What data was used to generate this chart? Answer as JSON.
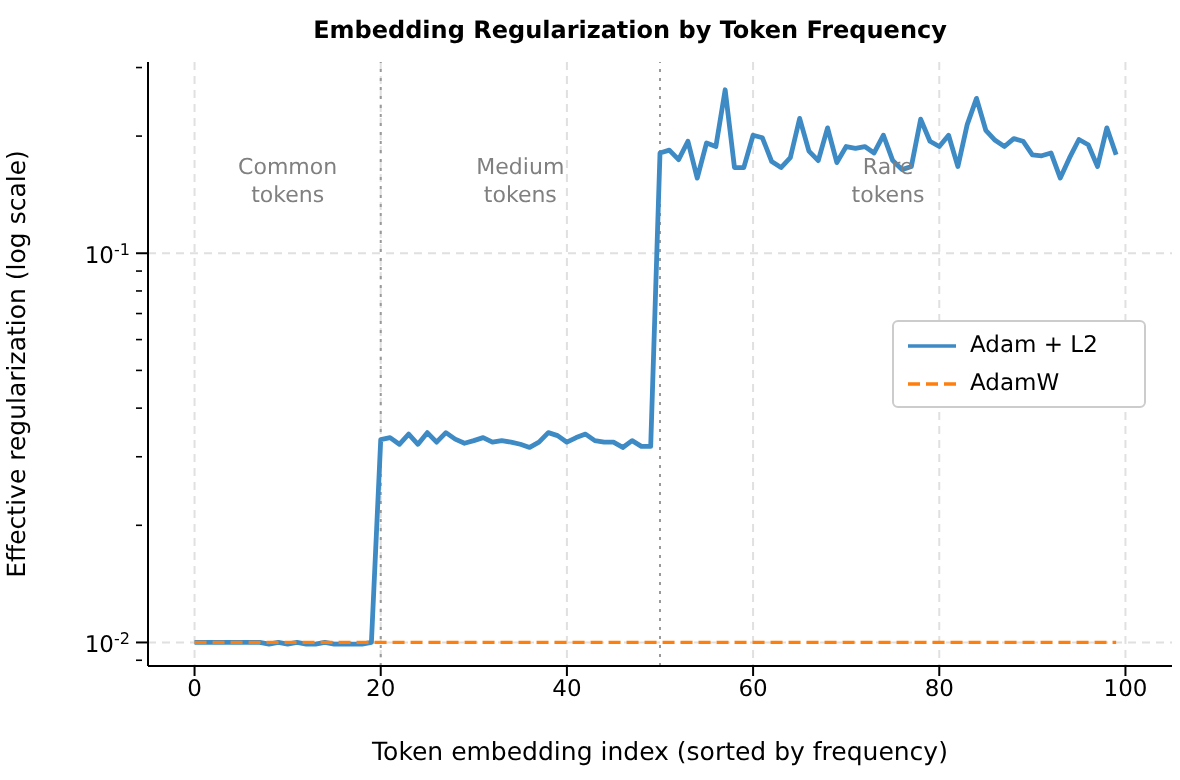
{
  "chart_data": {
    "type": "line",
    "title": "Embedding Regularization by Token Frequency",
    "xlabel": "Token embedding index (sorted by frequency)",
    "ylabel": "Effective regularization (log scale)",
    "x": [
      0,
      1,
      2,
      3,
      4,
      5,
      6,
      7,
      8,
      9,
      10,
      11,
      12,
      13,
      14,
      15,
      16,
      17,
      18,
      19,
      20,
      21,
      22,
      23,
      24,
      25,
      26,
      27,
      28,
      29,
      30,
      31,
      32,
      33,
      34,
      35,
      36,
      37,
      38,
      39,
      40,
      41,
      42,
      43,
      44,
      45,
      46,
      47,
      48,
      49,
      50,
      51,
      52,
      53,
      54,
      55,
      56,
      57,
      58,
      59,
      60,
      61,
      62,
      63,
      64,
      65,
      66,
      67,
      68,
      69,
      70,
      71,
      72,
      73,
      74,
      75,
      76,
      77,
      78,
      79,
      80,
      81,
      82,
      83,
      84,
      85,
      86,
      87,
      88,
      89,
      90,
      91,
      92,
      93,
      94,
      95,
      96,
      97,
      98,
      99
    ],
    "series": [
      {
        "name": "Adam + L2",
        "color": "#3d8ac4",
        "line_style": "solid",
        "values": [
          0.01,
          0.01,
          0.01,
          0.01,
          0.01,
          0.01,
          0.01,
          0.01,
          0.0099,
          0.01,
          0.0099,
          0.01,
          0.0099,
          0.0099,
          0.01,
          0.0099,
          0.0099,
          0.0099,
          0.0099,
          0.01,
          0.0332,
          0.0336,
          0.0323,
          0.0343,
          0.0323,
          0.0346,
          0.0327,
          0.0346,
          0.0333,
          0.0325,
          0.033,
          0.0336,
          0.0327,
          0.033,
          0.0327,
          0.0323,
          0.0317,
          0.0327,
          0.0346,
          0.034,
          0.0327,
          0.0336,
          0.0343,
          0.033,
          0.0327,
          0.0327,
          0.0317,
          0.033,
          0.0319,
          0.0319,
          0.181,
          0.184,
          0.174,
          0.194,
          0.156,
          0.192,
          0.188,
          0.263,
          0.166,
          0.166,
          0.201,
          0.198,
          0.172,
          0.166,
          0.176,
          0.222,
          0.183,
          0.173,
          0.21,
          0.171,
          0.188,
          0.186,
          0.188,
          0.181,
          0.201,
          0.173,
          0.164,
          0.167,
          0.221,
          0.194,
          0.188,
          0.201,
          0.167,
          0.214,
          0.25,
          0.207,
          0.195,
          0.188,
          0.197,
          0.194,
          0.179,
          0.178,
          0.181,
          0.156,
          0.176,
          0.196,
          0.19,
          0.167,
          0.21,
          0.179
        ]
      },
      {
        "name": "AdamW",
        "color": "#ff7f0e",
        "line_style": "dashed",
        "values": [
          0.01,
          0.01,
          0.01,
          0.01,
          0.01,
          0.01,
          0.01,
          0.01,
          0.01,
          0.01,
          0.01,
          0.01,
          0.01,
          0.01,
          0.01,
          0.01,
          0.01,
          0.01,
          0.01,
          0.01,
          0.01,
          0.01,
          0.01,
          0.01,
          0.01,
          0.01,
          0.01,
          0.01,
          0.01,
          0.01,
          0.01,
          0.01,
          0.01,
          0.01,
          0.01,
          0.01,
          0.01,
          0.01,
          0.01,
          0.01,
          0.01,
          0.01,
          0.01,
          0.01,
          0.01,
          0.01,
          0.01,
          0.01,
          0.01,
          0.01,
          0.01,
          0.01,
          0.01,
          0.01,
          0.01,
          0.01,
          0.01,
          0.01,
          0.01,
          0.01,
          0.01,
          0.01,
          0.01,
          0.01,
          0.01,
          0.01,
          0.01,
          0.01,
          0.01,
          0.01,
          0.01,
          0.01,
          0.01,
          0.01,
          0.01,
          0.01,
          0.01,
          0.01,
          0.01,
          0.01,
          0.01,
          0.01,
          0.01,
          0.01,
          0.01,
          0.01,
          0.01,
          0.01,
          0.01,
          0.01,
          0.01,
          0.01,
          0.01,
          0.01,
          0.01,
          0.01,
          0.01,
          0.01,
          0.01,
          0.01
        ]
      }
    ],
    "log": "y",
    "xlim": [
      -5,
      105
    ],
    "xticks": [
      0,
      20,
      40,
      60,
      80,
      100
    ],
    "ylim": [
      0.0087,
      0.31
    ],
    "yticks": [
      {
        "value": 0.009,
        "label": null
      },
      {
        "value": 0.01,
        "label": "10$^{-2}$"
      },
      {
        "value": 0.02,
        "label": null
      },
      {
        "value": 0.03,
        "label": null
      },
      {
        "value": 0.04,
        "label": null
      },
      {
        "value": 0.05,
        "label": null
      },
      {
        "value": 0.06,
        "label": null
      },
      {
        "value": 0.07,
        "label": null
      },
      {
        "value": 0.08,
        "label": null
      },
      {
        "value": 0.09,
        "label": null
      },
      {
        "value": 0.1,
        "label": "10$^{-1}$"
      },
      {
        "value": 0.2,
        "label": null
      },
      {
        "value": 0.3,
        "label": null
      }
    ],
    "ref_lines": [
      {
        "axis": "x",
        "value": 20,
        "color": "#999999",
        "line_style": "dotted"
      },
      {
        "axis": "x",
        "value": 50,
        "color": "#999999",
        "line_style": "dotted"
      }
    ],
    "annotations": [
      "Common\ntokens",
      "Medium\ntokens",
      "Rare\ntokens"
    ],
    "grid": true,
    "legend": "right"
  }
}
